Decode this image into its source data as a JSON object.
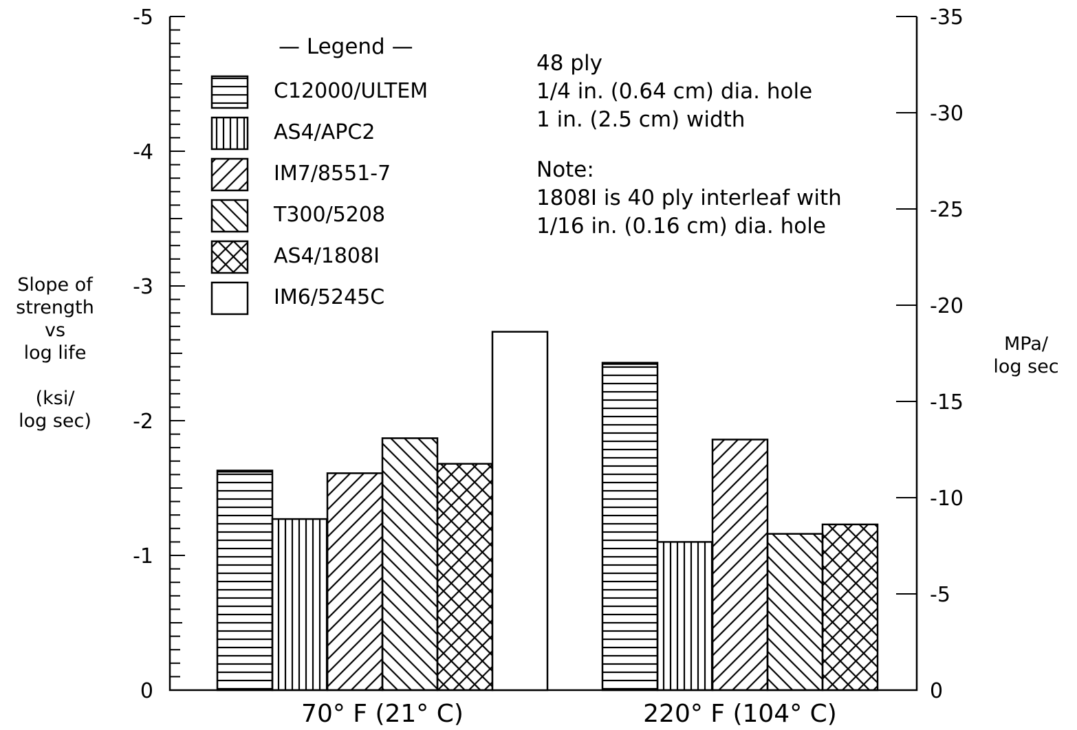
{
  "chart_data": {
    "type": "bar",
    "categories": [
      "70° F (21° C)",
      "220° F (104° C)"
    ],
    "series": [
      {
        "name": "C12000/ULTEM",
        "pattern": "horizontal",
        "values": [
          -1.63,
          -2.43
        ]
      },
      {
        "name": "AS4/APC2",
        "pattern": "vertical",
        "values": [
          -1.27,
          -1.1
        ]
      },
      {
        "name": "IM7/8551-7",
        "pattern": "backslash",
        "values": [
          -1.61,
          -1.86
        ]
      },
      {
        "name": "T300/5208",
        "pattern": "slash",
        "values": [
          -1.87,
          -1.16
        ]
      },
      {
        "name": "AS4/1808I",
        "pattern": "crosshatch",
        "values": [
          -1.68,
          -1.23
        ]
      },
      {
        "name": "IM6/5245C",
        "pattern": "none",
        "values": [
          -2.66,
          null
        ]
      }
    ],
    "ylabel_left": [
      "Slope of",
      "strength",
      "vs",
      "log life",
      "",
      "(ksi/",
      "log sec)"
    ],
    "ylabel_right": [
      "MPa/",
      "log sec"
    ],
    "ylim": [
      0,
      -5
    ],
    "yticks_left": [
      "0",
      "-1",
      "-2",
      "-3",
      "-4",
      "-5"
    ],
    "ylim_right": [
      0,
      -35
    ],
    "yticks_right": [
      "0",
      "-5",
      "-10",
      "-15",
      "-20",
      "-25",
      "-30",
      "-35"
    ],
    "legend_title": "— Legend —",
    "legend_position": "top-left",
    "annotations": [
      "48 ply",
      "1/4 in. (0.64 cm) dia. hole",
      "1 in. (2.5 cm) width",
      "",
      "Note:",
      "1808I is 40 ply interleaf with",
      "1/16 in. (0.16 cm) dia. hole"
    ],
    "grid": false
  }
}
